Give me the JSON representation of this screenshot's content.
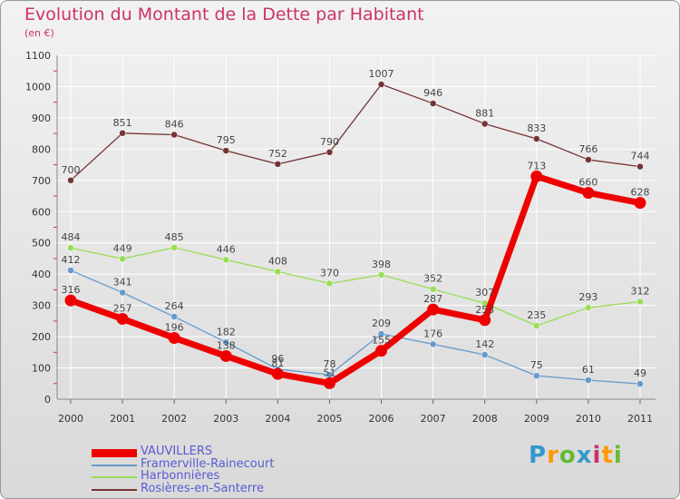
{
  "title": "Evolution du Montant de la Dette par Habitant",
  "subtitle": "(en €)",
  "logo_text": "Proxiti",
  "chart_data": {
    "type": "line",
    "title": "Evolution du Montant de la Dette par Habitant",
    "subtitle": "(en €)",
    "ylim": [
      0,
      1100
    ],
    "y_ticks": [
      0,
      100,
      200,
      300,
      400,
      500,
      600,
      700,
      800,
      900,
      1000,
      1100
    ],
    "categories": [
      "2000",
      "2001",
      "2002",
      "2003",
      "2004",
      "2005",
      "2006",
      "2007",
      "2008",
      "2009",
      "2010",
      "2011"
    ],
    "grid": true,
    "legend_position": "bottom-left",
    "series": [
      {
        "name": "VAUVILLERS",
        "color": "#ee0000",
        "values": [
          316,
          257,
          196,
          138,
          81,
          51,
          155,
          287,
          253,
          713,
          660,
          628
        ]
      },
      {
        "name": "Framerville-Rainecourt",
        "color": "#6699cc",
        "values": [
          412,
          341,
          264,
          182,
          96,
          78,
          209,
          176,
          142,
          75,
          61,
          49
        ]
      },
      {
        "name": "Harbonnières",
        "color": "#99dd55",
        "values": [
          484,
          449,
          485,
          446,
          408,
          370,
          398,
          352,
          307,
          235,
          293,
          312
        ]
      },
      {
        "name": "Rosières-en-Santerre",
        "color": "#773333",
        "values": [
          700,
          851,
          846,
          795,
          752,
          790,
          1007,
          946,
          881,
          833,
          766,
          744
        ]
      }
    ]
  }
}
